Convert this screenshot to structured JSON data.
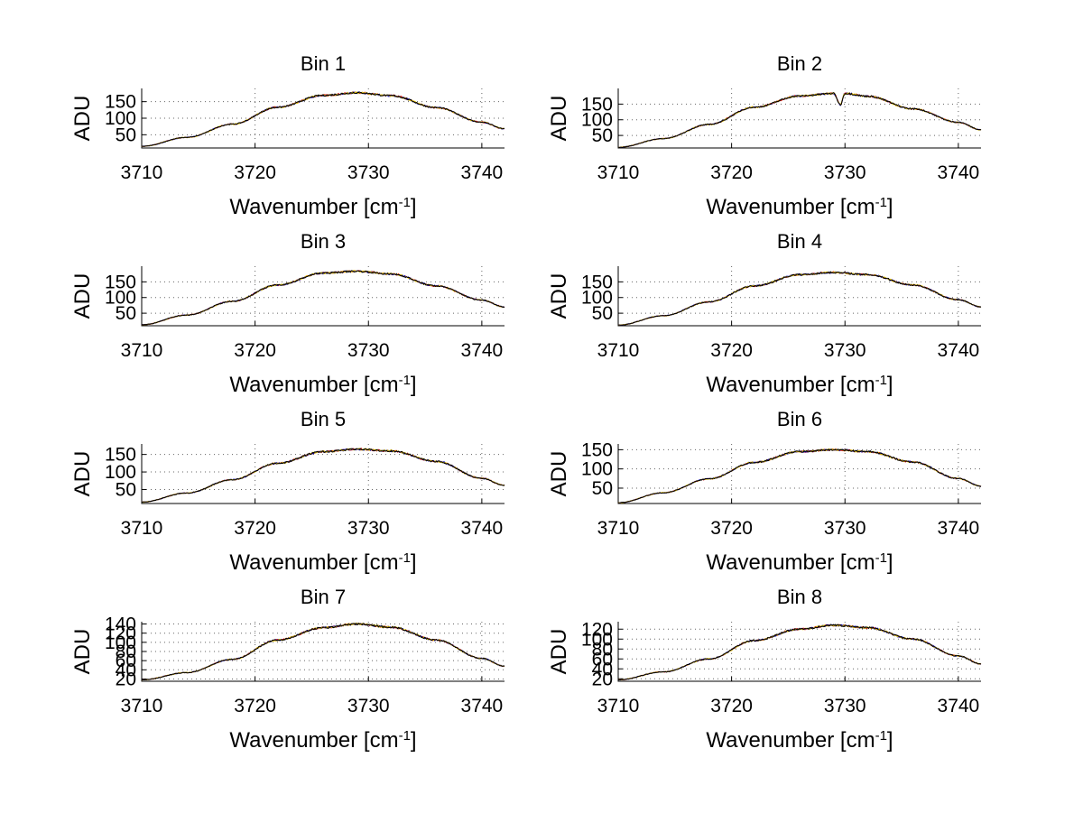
{
  "figure": {
    "background": "#ffffff",
    "series_colors": [
      "#d40000",
      "#0000b0",
      "#e0c000",
      "#000000"
    ]
  },
  "chart_data": [
    {
      "type": "line",
      "title": "Bin 1",
      "xlabel": "Wavenumber [cm",
      "xlabel_sup": "-1",
      "xlabel_end": "]",
      "ylabel": "ADU",
      "xlim": [
        3710,
        3742
      ],
      "ylim": [
        10,
        190
      ],
      "xticks": [
        3710,
        3720,
        3730,
        3740
      ],
      "yticks": [
        50,
        100,
        150
      ],
      "x": [
        3710,
        3714,
        3718,
        3722,
        3726,
        3729,
        3732,
        3736,
        3740,
        3742
      ],
      "y": [
        15,
        42,
        82,
        133,
        169,
        177,
        168,
        132,
        88,
        68
      ]
    },
    {
      "type": "line",
      "title": "Bin 2",
      "xlabel": "Wavenumber [cm",
      "xlabel_sup": "-1",
      "xlabel_end": "]",
      "ylabel": "ADU",
      "xlim": [
        3710,
        3742
      ],
      "ylim": [
        10,
        200
      ],
      "xticks": [
        3710,
        3720,
        3730,
        3740
      ],
      "yticks": [
        50,
        100,
        150
      ],
      "x": [
        3710,
        3714,
        3718,
        3722,
        3726,
        3729,
        3729.6,
        3730,
        3732,
        3736,
        3740,
        3742
      ],
      "y": [
        12,
        40,
        85,
        140,
        176,
        184,
        148,
        184,
        175,
        135,
        92,
        68
      ]
    },
    {
      "type": "line",
      "title": "Bin 3",
      "xlabel": "Wavenumber [cm",
      "xlabel_sup": "-1",
      "xlabel_end": "]",
      "ylabel": "ADU",
      "xlim": [
        3710,
        3742
      ],
      "ylim": [
        10,
        200
      ],
      "xticks": [
        3710,
        3720,
        3730,
        3740
      ],
      "yticks": [
        50,
        100,
        150
      ],
      "x": [
        3710,
        3714,
        3718,
        3722,
        3726,
        3729,
        3732,
        3736,
        3740,
        3742
      ],
      "y": [
        13,
        44,
        88,
        140,
        178,
        184,
        175,
        137,
        92,
        70
      ]
    },
    {
      "type": "line",
      "title": "Bin 4",
      "xlabel": "Wavenumber [cm",
      "xlabel_sup": "-1",
      "xlabel_end": "]",
      "ylabel": "ADU",
      "xlim": [
        3710,
        3742
      ],
      "ylim": [
        10,
        200
      ],
      "xticks": [
        3710,
        3720,
        3730,
        3740
      ],
      "yticks": [
        50,
        100,
        150
      ],
      "x": [
        3710,
        3714,
        3718,
        3722,
        3726,
        3729,
        3732,
        3736,
        3740,
        3742
      ],
      "y": [
        12,
        42,
        86,
        137,
        173,
        180,
        173,
        140,
        93,
        70
      ]
    },
    {
      "type": "line",
      "title": "Bin 5",
      "xlabel": "Wavenumber [cm",
      "xlabel_sup": "-1",
      "xlabel_end": "]",
      "ylabel": "ADU",
      "xlim": [
        3710,
        3742
      ],
      "ylim": [
        10,
        180
      ],
      "xticks": [
        3710,
        3720,
        3730,
        3740
      ],
      "yticks": [
        50,
        100,
        150
      ],
      "x": [
        3710,
        3714,
        3718,
        3722,
        3726,
        3729,
        3732,
        3736,
        3740,
        3742
      ],
      "y": [
        14,
        40,
        78,
        125,
        158,
        165,
        160,
        130,
        82,
        62
      ]
    },
    {
      "type": "line",
      "title": "Bin 6",
      "xlabel": "Wavenumber [cm",
      "xlabel_sup": "-1",
      "xlabel_end": "]",
      "ylabel": "ADU",
      "xlim": [
        3710,
        3742
      ],
      "ylim": [
        10,
        165
      ],
      "xticks": [
        3710,
        3720,
        3730,
        3740
      ],
      "yticks": [
        50,
        100,
        150
      ],
      "x": [
        3710,
        3714,
        3718,
        3722,
        3726,
        3729,
        3732,
        3736,
        3740,
        3742
      ],
      "y": [
        12,
        38,
        74,
        117,
        145,
        150,
        145,
        118,
        75,
        55
      ]
    },
    {
      "type": "line",
      "title": "Bin 7",
      "xlabel": "Wavenumber [cm",
      "xlabel_sup": "-1",
      "xlabel_end": "]",
      "ylabel": "ADU",
      "xlim": [
        3710,
        3742
      ],
      "ylim": [
        15,
        145
      ],
      "xticks": [
        3710,
        3720,
        3730,
        3740
      ],
      "yticks": [
        20,
        40,
        60,
        80,
        100,
        120,
        140
      ],
      "x": [
        3710,
        3714,
        3718,
        3722,
        3726,
        3729,
        3732,
        3736,
        3740,
        3742
      ],
      "y": [
        18,
        34,
        63,
        105,
        132,
        140,
        133,
        105,
        65,
        48
      ]
    },
    {
      "type": "line",
      "title": "Bin 8",
      "xlabel": "Wavenumber [cm",
      "xlabel_sup": "-1",
      "xlabel_end": "]",
      "ylabel": "ADU",
      "xlim": [
        3710,
        3742
      ],
      "ylim": [
        15,
        135
      ],
      "xticks": [
        3710,
        3720,
        3730,
        3740
      ],
      "yticks": [
        20,
        40,
        60,
        80,
        100,
        120
      ],
      "x": [
        3710,
        3714,
        3718,
        3722,
        3726,
        3729,
        3732,
        3736,
        3740,
        3742
      ],
      "y": [
        18,
        34,
        60,
        97,
        120,
        128,
        123,
        100,
        66,
        50
      ]
    }
  ]
}
